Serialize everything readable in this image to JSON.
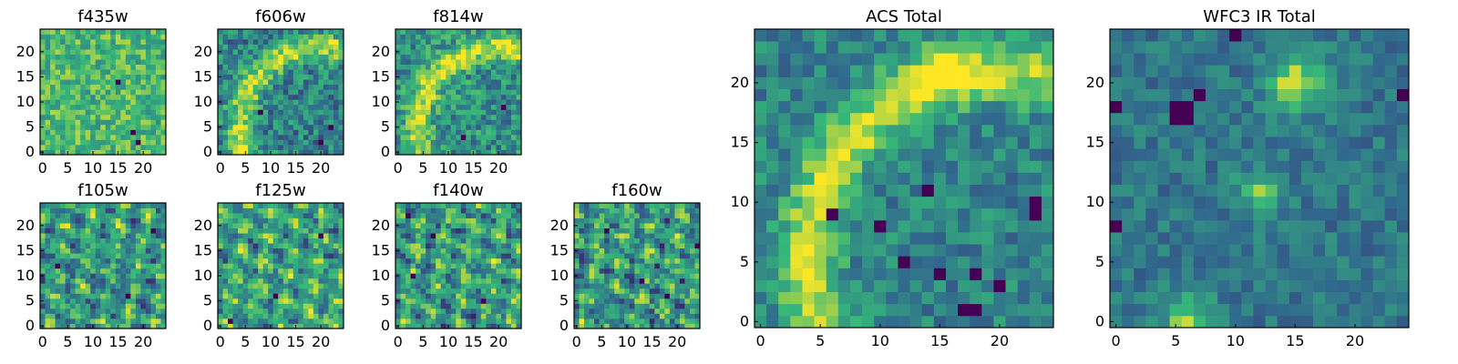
{
  "figure": {
    "background": "#ffffff"
  },
  "colormap": [
    "#440154",
    "#31688e",
    "#35b779",
    "#fde725"
  ],
  "chart_data": [
    {
      "type": "heatmap",
      "title": "f435w",
      "size": 25,
      "xticks": [
        0,
        5,
        10,
        15,
        20
      ],
      "yticks": [
        0,
        5,
        10,
        15,
        20
      ],
      "pattern": "noise",
      "base": 0.68,
      "noise": 0.2,
      "dark_pixels": [
        [
          15,
          14
        ],
        [
          19,
          2
        ],
        [
          18,
          4
        ]
      ]
    },
    {
      "type": "heatmap",
      "title": "f606w",
      "size": 25,
      "xticks": [
        0,
        5,
        10,
        15,
        20
      ],
      "yticks": [
        0,
        5,
        10,
        15,
        20
      ],
      "pattern": "arc",
      "base": 0.45,
      "noise": 0.22,
      "dark_pixels": [
        [
          20,
          2
        ],
        [
          8,
          8
        ],
        [
          22,
          5
        ]
      ]
    },
    {
      "type": "heatmap",
      "title": "f814w",
      "size": 25,
      "xticks": [
        0,
        5,
        10,
        15,
        20
      ],
      "yticks": [
        0,
        5,
        10,
        15,
        20
      ],
      "pattern": "arc",
      "base": 0.5,
      "noise": 0.22,
      "dark_pixels": [
        [
          13,
          3
        ],
        [
          21,
          9
        ]
      ]
    },
    {
      "type": "heatmap",
      "title": "f105w",
      "size": 25,
      "xticks": [
        0,
        5,
        10,
        15,
        20
      ],
      "yticks": [
        0,
        5,
        10,
        15,
        20
      ],
      "pattern": "blobs",
      "base": 0.55,
      "noise": 0.2,
      "dark_pixels": [
        [
          22,
          19
        ],
        [
          3,
          12
        ],
        [
          17,
          6
        ]
      ]
    },
    {
      "type": "heatmap",
      "title": "f125w",
      "size": 25,
      "xticks": [
        0,
        5,
        10,
        15,
        20
      ],
      "yticks": [
        0,
        5,
        10,
        15,
        20
      ],
      "pattern": "blobs",
      "base": 0.58,
      "noise": 0.2,
      "dark_pixels": [
        [
          11,
          6
        ],
        [
          2,
          1
        ],
        [
          20,
          18
        ]
      ]
    },
    {
      "type": "heatmap",
      "title": "f140w",
      "size": 25,
      "xticks": [
        0,
        5,
        10,
        15,
        20
      ],
      "yticks": [
        0,
        5,
        10,
        15,
        20
      ],
      "pattern": "blobs",
      "base": 0.55,
      "noise": 0.22,
      "dark_pixels": [
        [
          2,
          22
        ],
        [
          3,
          10
        ],
        [
          7,
          18
        ],
        [
          17,
          5
        ]
      ]
    },
    {
      "type": "heatmap",
      "title": "f160w",
      "size": 25,
      "xticks": [
        0,
        5,
        10,
        15,
        20
      ],
      "yticks": [
        0,
        5,
        10,
        15,
        20
      ],
      "pattern": "blobs",
      "base": 0.55,
      "noise": 0.22,
      "dark_pixels": [
        [
          24,
          16
        ],
        [
          6,
          19
        ],
        [
          13,
          9
        ],
        [
          18,
          6
        ]
      ]
    },
    {
      "type": "heatmap",
      "title": "ACS Total",
      "size": 25,
      "xticks": [
        0,
        5,
        10,
        15,
        20
      ],
      "yticks": [
        0,
        5,
        10,
        15,
        20
      ],
      "pattern": "arc",
      "base": 0.45,
      "noise": 0.16,
      "dark_pixels": [
        [
          17,
          1
        ],
        [
          18,
          1
        ],
        [
          20,
          3
        ],
        [
          18,
          4
        ],
        [
          12,
          5
        ],
        [
          15,
          4
        ],
        [
          10,
          8
        ],
        [
          6,
          9
        ],
        [
          23,
          9
        ],
        [
          23,
          10
        ],
        [
          14,
          11
        ]
      ]
    },
    {
      "type": "heatmap",
      "title": "WFC3 IR Total",
      "size": 25,
      "xticks": [
        0,
        5,
        10,
        15,
        20
      ],
      "yticks": [
        0,
        5,
        10,
        15,
        20
      ],
      "pattern": "ir_total",
      "base": 0.4,
      "noise": 0.12,
      "dark_pixels": [
        [
          5,
          17
        ],
        [
          6,
          17
        ],
        [
          5,
          18
        ],
        [
          6,
          18
        ],
        [
          0,
          18
        ],
        [
          10,
          24
        ],
        [
          7,
          19
        ],
        [
          24,
          19
        ],
        [
          0,
          8
        ]
      ]
    }
  ]
}
